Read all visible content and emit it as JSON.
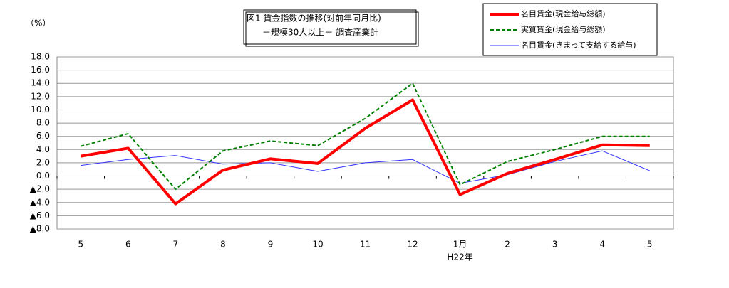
{
  "chart_data": {
    "type": "line",
    "title": "図1 賃金指数の推移(対前年同月比)",
    "subtitle": "－規模30人以上－ 調査産業計",
    "y_label": "（%）",
    "annotation": "H22年",
    "categories": [
      "5",
      "6",
      "7",
      "8",
      "9",
      "10",
      "11",
      "12",
      "1月",
      "2",
      "3",
      "4",
      "5"
    ],
    "series": [
      {
        "name": "名目賃金(現金給与総額)",
        "color": "#ff0000",
        "line_width": 4,
        "dashed": false,
        "values": [
          3.0,
          4.2,
          -4.2,
          0.9,
          2.6,
          1.9,
          7.2,
          11.5,
          -2.8,
          0.4,
          2.5,
          4.7,
          4.6
        ]
      },
      {
        "name": "実質賃金(現金給与総額)",
        "color": "#008000",
        "line_width": 2,
        "dashed": true,
        "values": [
          4.5,
          6.4,
          -2.0,
          3.8,
          5.3,
          4.6,
          8.7,
          14.0,
          -1.3,
          2.2,
          4.0,
          6.0,
          6.0
        ]
      },
      {
        "name": "名目賃金(きまって支給する給与)",
        "color": "#3333ff",
        "line_width": 1,
        "dashed": false,
        "values": [
          1.6,
          2.5,
          3.1,
          1.8,
          2.0,
          0.7,
          2.0,
          2.5,
          -1.1,
          0.2,
          2.2,
          3.8,
          0.8
        ]
      }
    ],
    "ylim": [
      -8,
      18
    ],
    "yticks": [
      {
        "value": -8,
        "label": "▲8.0"
      },
      {
        "value": -6,
        "label": "▲6.0"
      },
      {
        "value": -4,
        "label": "▲4.0"
      },
      {
        "value": -2,
        "label": "▲2.0"
      },
      {
        "value": 0,
        "label": "0.0"
      },
      {
        "value": 2,
        "label": "2.0"
      },
      {
        "value": 4,
        "label": "4.0"
      },
      {
        "value": 6,
        "label": "6.0"
      },
      {
        "value": 8,
        "label": "8.0"
      },
      {
        "value": 10,
        "label": "10.0"
      },
      {
        "value": 12,
        "label": "12.0"
      },
      {
        "value": 14,
        "label": "14.0"
      },
      {
        "value": 16,
        "label": "16.0"
      },
      {
        "value": 18,
        "label": "18.0"
      }
    ],
    "grid": true
  }
}
